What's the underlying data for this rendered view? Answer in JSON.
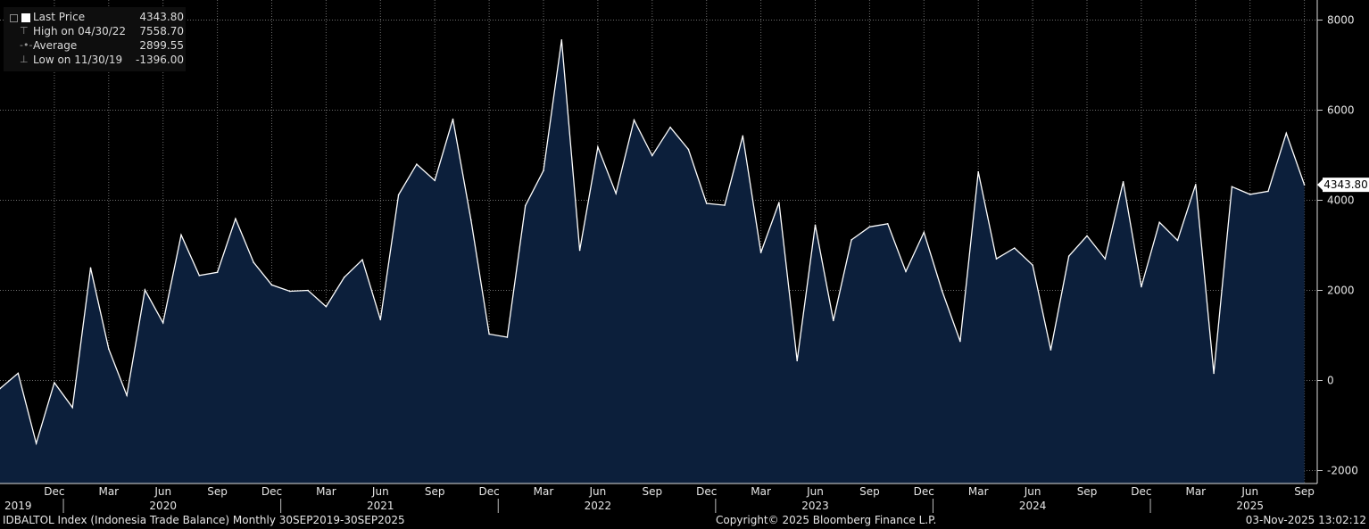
{
  "legend": {
    "last": {
      "label": "Last Price",
      "value": "4343.80"
    },
    "high": {
      "label": "High on 04/30/22",
      "value": "7558.70"
    },
    "average": {
      "label": "Average",
      "value": "2899.55"
    },
    "low": {
      "label": "Low on 11/30/19",
      "value": "-1396.00"
    }
  },
  "footer": {
    "ticker": "IDBALTOL Index (Indonesia Trade Balance) Monthly 30SEP2019-30SEP2025",
    "copyright": "Copyright© 2025 Bloomberg Finance L.P.",
    "timestamp": "03-Nov-2025 13:02:12"
  },
  "colors": {
    "line": "#ffffff",
    "fill": "#0c1f3b",
    "grid": "#6e6e6e",
    "background": "#000000"
  },
  "chart_data": {
    "type": "area",
    "grid": true,
    "ylim": [
      -2200,
      8200
    ],
    "yticks": [
      -2000,
      0,
      2000,
      4000,
      6000,
      8000
    ],
    "last_label": "4343.80",
    "x": [
      "2019-09",
      "2019-10",
      "2019-11",
      "2019-12",
      "2020-01",
      "2020-02",
      "2020-03",
      "2020-04",
      "2020-05",
      "2020-06",
      "2020-07",
      "2020-08",
      "2020-09",
      "2020-10",
      "2020-11",
      "2020-12",
      "2021-01",
      "2021-02",
      "2021-03",
      "2021-04",
      "2021-05",
      "2021-06",
      "2021-07",
      "2021-08",
      "2021-09",
      "2021-10",
      "2021-11",
      "2021-12",
      "2022-01",
      "2022-02",
      "2022-03",
      "2022-04",
      "2022-05",
      "2022-06",
      "2022-07",
      "2022-08",
      "2022-09",
      "2022-10",
      "2022-11",
      "2022-12",
      "2023-01",
      "2023-02",
      "2023-03",
      "2023-04",
      "2023-05",
      "2023-06",
      "2023-07",
      "2023-08",
      "2023-09",
      "2023-10",
      "2023-11",
      "2023-12",
      "2024-01",
      "2024-02",
      "2024-03",
      "2024-04",
      "2024-05",
      "2024-06",
      "2024-07",
      "2024-08",
      "2024-09",
      "2024-10",
      "2024-11",
      "2024-12",
      "2025-01",
      "2025-02",
      "2025-03",
      "2025-04",
      "2025-05",
      "2025-06",
      "2025-07",
      "2025-08",
      "2025-09"
    ],
    "values": [
      -180,
      160,
      -1396,
      -50,
      -600,
      2500,
      700,
      -330,
      2010,
      1280,
      3230,
      2330,
      2400,
      3590,
      2620,
      2120,
      1980,
      2000,
      1640,
      2290,
      2680,
      1350,
      4120,
      4800,
      4440,
      5800,
      3560,
      1030,
      960,
      3880,
      4660,
      7558.7,
      2890,
      5180,
      4150,
      5780,
      4990,
      5620,
      5130,
      3930,
      3890,
      5430,
      2840,
      3950,
      440,
      3450,
      1330,
      3120,
      3410,
      3480,
      2420,
      3290,
      1990,
      870,
      4630,
      2700,
      2940,
      2560,
      680,
      2760,
      3210,
      2700,
      4410,
      2080,
      3510,
      3110,
      4350,
      160,
      4300,
      4130,
      4200,
      5490,
      4343.8
    ],
    "x_ticks": [
      {
        "label": "Dec",
        "i": 3
      },
      {
        "label": "Mar",
        "i": 6
      },
      {
        "label": "Jun",
        "i": 9
      },
      {
        "label": "Sep",
        "i": 12
      },
      {
        "label": "Dec",
        "i": 15
      },
      {
        "label": "Mar",
        "i": 18
      },
      {
        "label": "Jun",
        "i": 21
      },
      {
        "label": "Sep",
        "i": 24
      },
      {
        "label": "Dec",
        "i": 27
      },
      {
        "label": "Mar",
        "i": 30
      },
      {
        "label": "Jun",
        "i": 33
      },
      {
        "label": "Sep",
        "i": 36
      },
      {
        "label": "Dec",
        "i": 39
      },
      {
        "label": "Mar",
        "i": 42
      },
      {
        "label": "Jun",
        "i": 45
      },
      {
        "label": "Sep",
        "i": 48
      },
      {
        "label": "Dec",
        "i": 51
      },
      {
        "label": "Mar",
        "i": 54
      },
      {
        "label": "Jun",
        "i": 57
      },
      {
        "label": "Sep",
        "i": 60
      },
      {
        "label": "Dec",
        "i": 63
      },
      {
        "label": "Mar",
        "i": 66
      },
      {
        "label": "Jun",
        "i": 69
      },
      {
        "label": "Sep",
        "i": 72
      }
    ],
    "year_ticks": [
      {
        "label": "2019",
        "i": 1
      },
      {
        "label": "2020",
        "i": 9
      },
      {
        "label": "2021",
        "i": 21
      },
      {
        "label": "2022",
        "i": 33
      },
      {
        "label": "2023",
        "i": 45
      },
      {
        "label": "2024",
        "i": 57
      },
      {
        "label": "2025",
        "i": 69
      }
    ],
    "year_separators": [
      3.5,
      15.5,
      27.5,
      39.5,
      51.5,
      63.5
    ]
  }
}
